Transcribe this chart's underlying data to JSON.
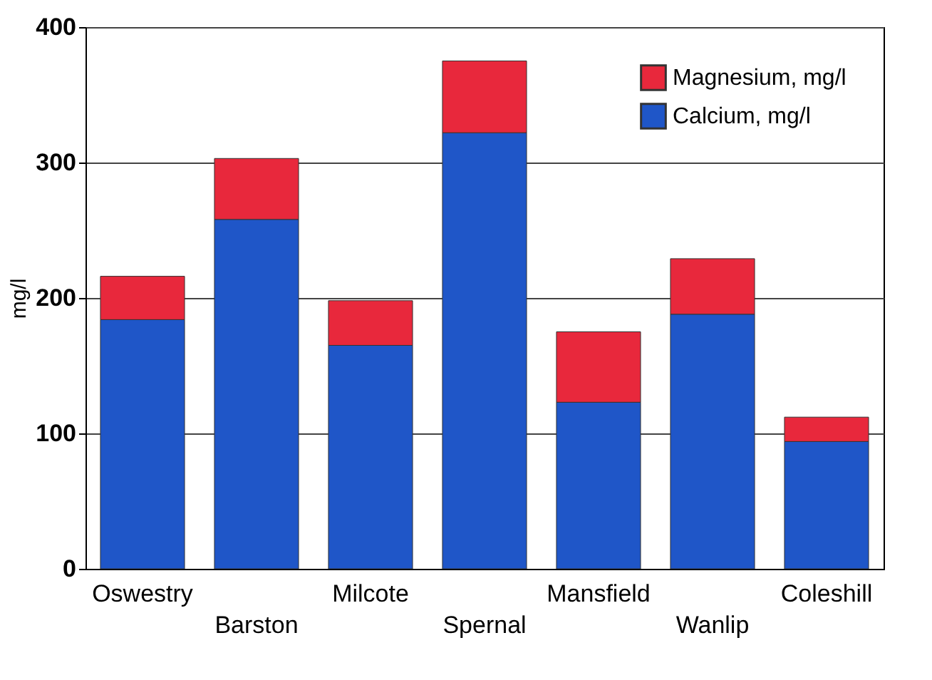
{
  "chart_data": {
    "type": "bar",
    "stacked": true,
    "ylabel": "mg/l",
    "categories": [
      "Oswestry",
      "Barston",
      "Milcote",
      "Spernal",
      "Mansfield",
      "Wanlip",
      "Coleshill"
    ],
    "series": [
      {
        "name": "Calcium, mg/l",
        "color": "#1f56c8",
        "values": [
          184,
          258,
          165,
          322,
          123,
          188,
          94
        ]
      },
      {
        "name": "Magnesium, mg/l",
        "color": "#e8283c",
        "values": [
          32,
          45,
          33,
          53,
          52,
          41,
          18
        ]
      }
    ],
    "ylim": [
      0,
      400
    ],
    "yticks": [
      0,
      100,
      200,
      300,
      400
    ],
    "grid": "y",
    "legend": "top right"
  }
}
